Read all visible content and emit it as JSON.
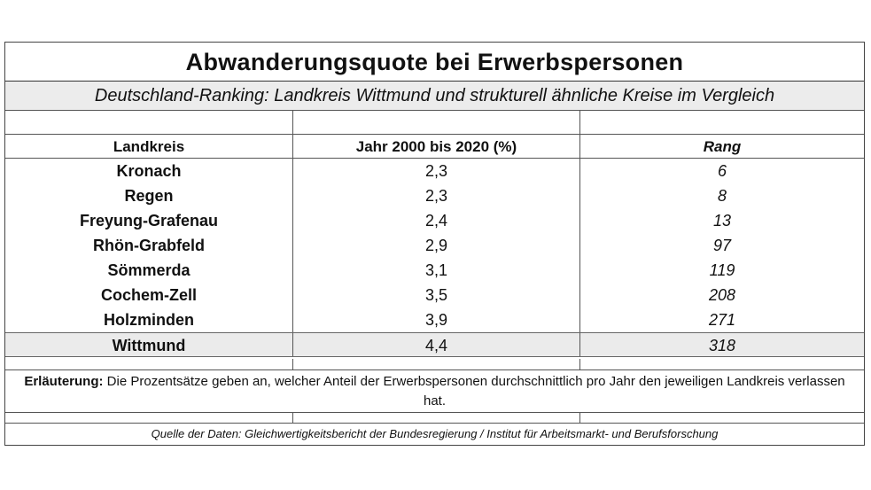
{
  "title": "Abwanderungsquote bei Erwerbspersonen",
  "subtitle": "Deutschland-Ranking: Landkreis Wittmund und strukturell ähnliche Kreise im Vergleich",
  "columns": [
    "Landkreis",
    "Jahr 2000 bis 2020 (%)",
    "Rang"
  ],
  "rows": [
    {
      "landkreis": "Kronach",
      "quote": "2,3",
      "rang": "6"
    },
    {
      "landkreis": "Regen",
      "quote": "2,3",
      "rang": "8"
    },
    {
      "landkreis": "Freyung-Grafenau",
      "quote": "2,4",
      "rang": "13"
    },
    {
      "landkreis": "Rhön-Grabfeld",
      "quote": "2,9",
      "rang": "97"
    },
    {
      "landkreis": "Sömmerda",
      "quote": "3,1",
      "rang": "119"
    },
    {
      "landkreis": "Cochem-Zell",
      "quote": "3,5",
      "rang": "208"
    },
    {
      "landkreis": "Holzminden",
      "quote": "3,9",
      "rang": "271"
    },
    {
      "landkreis": "Wittmund",
      "quote": "4,4",
      "rang": "318"
    }
  ],
  "note": {
    "label": "Erläuterung:",
    "text": " Die Prozentsätze geben an, welcher Anteil der Erwerbspersonen durchschnittlich pro Jahr den jeweiligen Landkreis verlassen hat."
  },
  "source": "Quelle der Daten: Gleichwertigkeitsbericht der Bundesregierung / Institut für Arbeitsmarkt- und Berufsforschung"
}
